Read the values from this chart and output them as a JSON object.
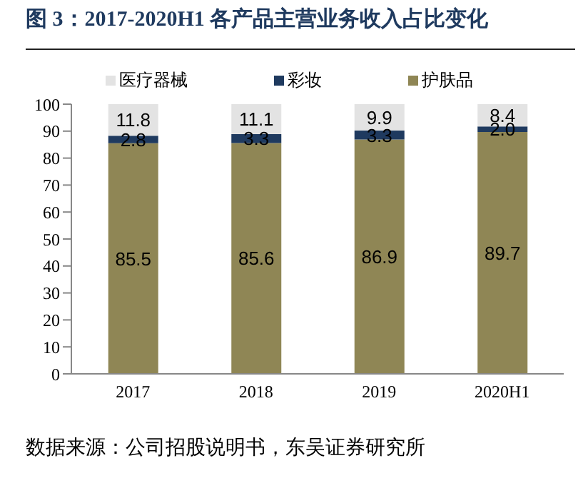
{
  "chart_data": {
    "type": "bar",
    "title": "图 3：2017-2020H1 各产品主营业务收入占比变化",
    "categories": [
      "2017",
      "2018",
      "2019",
      "2020H1"
    ],
    "stacked": true,
    "series": [
      {
        "name": "护肤品",
        "color": "#8f8655",
        "values": [
          85.5,
          85.6,
          86.9,
          89.7
        ],
        "value_labels": [
          "85.5",
          "85.6",
          "86.9",
          "89.7"
        ]
      },
      {
        "name": "彩妆",
        "color": "#1f3a5f",
        "values": [
          2.8,
          3.3,
          3.3,
          2.0
        ],
        "value_labels": [
          "2.8",
          "3.3",
          "3.3",
          "2.0"
        ]
      },
      {
        "name": "医疗器械",
        "color": "#e3e3e3",
        "values": [
          11.8,
          11.1,
          9.9,
          8.4
        ],
        "value_labels": [
          "11.8",
          "11.1",
          "9.9",
          "8.4"
        ]
      }
    ],
    "ylim": [
      0,
      100
    ],
    "yticks": [
      0,
      10,
      20,
      30,
      40,
      50,
      60,
      70,
      80,
      90,
      100
    ],
    "grid": false,
    "legend": "top",
    "annotations": [
      "数据来源：公司招股说明书，东吴证券研究所"
    ]
  }
}
